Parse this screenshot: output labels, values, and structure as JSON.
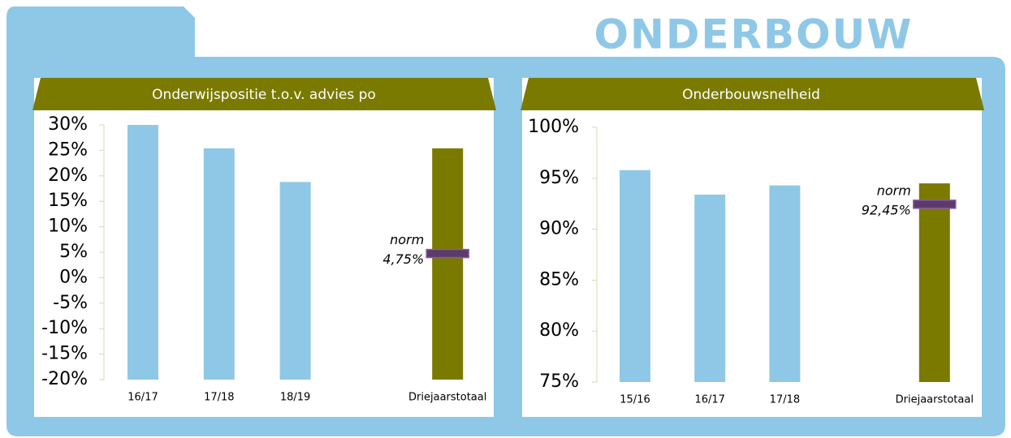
{
  "title": "ONDERBOUW",
  "chart_data": [
    {
      "type": "bar",
      "title": "Onderwijspositie t.o.v. advies po",
      "categories": [
        "16/17",
        "17/18",
        "18/19",
        null,
        "Driejaarstotaal"
      ],
      "values": [
        30,
        25.4,
        18.8,
        null,
        25.4
      ],
      "colors": [
        "#8fc8e6",
        "#8fc8e6",
        "#8fc8e6",
        null,
        "#7a7a00"
      ],
      "ylim": [
        -20,
        30
      ],
      "yticks": [
        {
          "value": -20,
          "label": "-20%"
        },
        {
          "value": -15,
          "label": "-15%"
        },
        {
          "value": -10,
          "label": "-10%"
        },
        {
          "value": -5,
          "label": "-5%"
        },
        {
          "value": 0,
          "label": "0%"
        },
        {
          "value": 5,
          "label": "5%"
        },
        {
          "value": 10,
          "label": "10%"
        },
        {
          "value": 15,
          "label": "15%"
        },
        {
          "value": 20,
          "label": "20%"
        },
        {
          "value": 25,
          "label": "25%"
        },
        {
          "value": 30,
          "label": "30%"
        }
      ],
      "norm": {
        "value": 4.75,
        "name": "norm",
        "label": "4,75%"
      }
    },
    {
      "type": "bar",
      "title": "Onderbouwsnelheid",
      "categories": [
        "15/16",
        "16/17",
        "17/18",
        null,
        "Driejaarstotaal"
      ],
      "values": [
        95.8,
        93.4,
        94.3,
        null,
        94.5
      ],
      "colors": [
        "#8fc8e6",
        "#8fc8e6",
        "#8fc8e6",
        null,
        "#7a7a00"
      ],
      "ylim": [
        75,
        100
      ],
      "yticks": [
        {
          "value": 75,
          "label": "75%"
        },
        {
          "value": 80,
          "label": "80%"
        },
        {
          "value": 85,
          "label": "85%"
        },
        {
          "value": 90,
          "label": "90%"
        },
        {
          "value": 95,
          "label": "95%"
        },
        {
          "value": 100,
          "label": "100%"
        }
      ],
      "norm": {
        "value": 92.45,
        "name": "norm",
        "label": "92,45%"
      }
    }
  ]
}
